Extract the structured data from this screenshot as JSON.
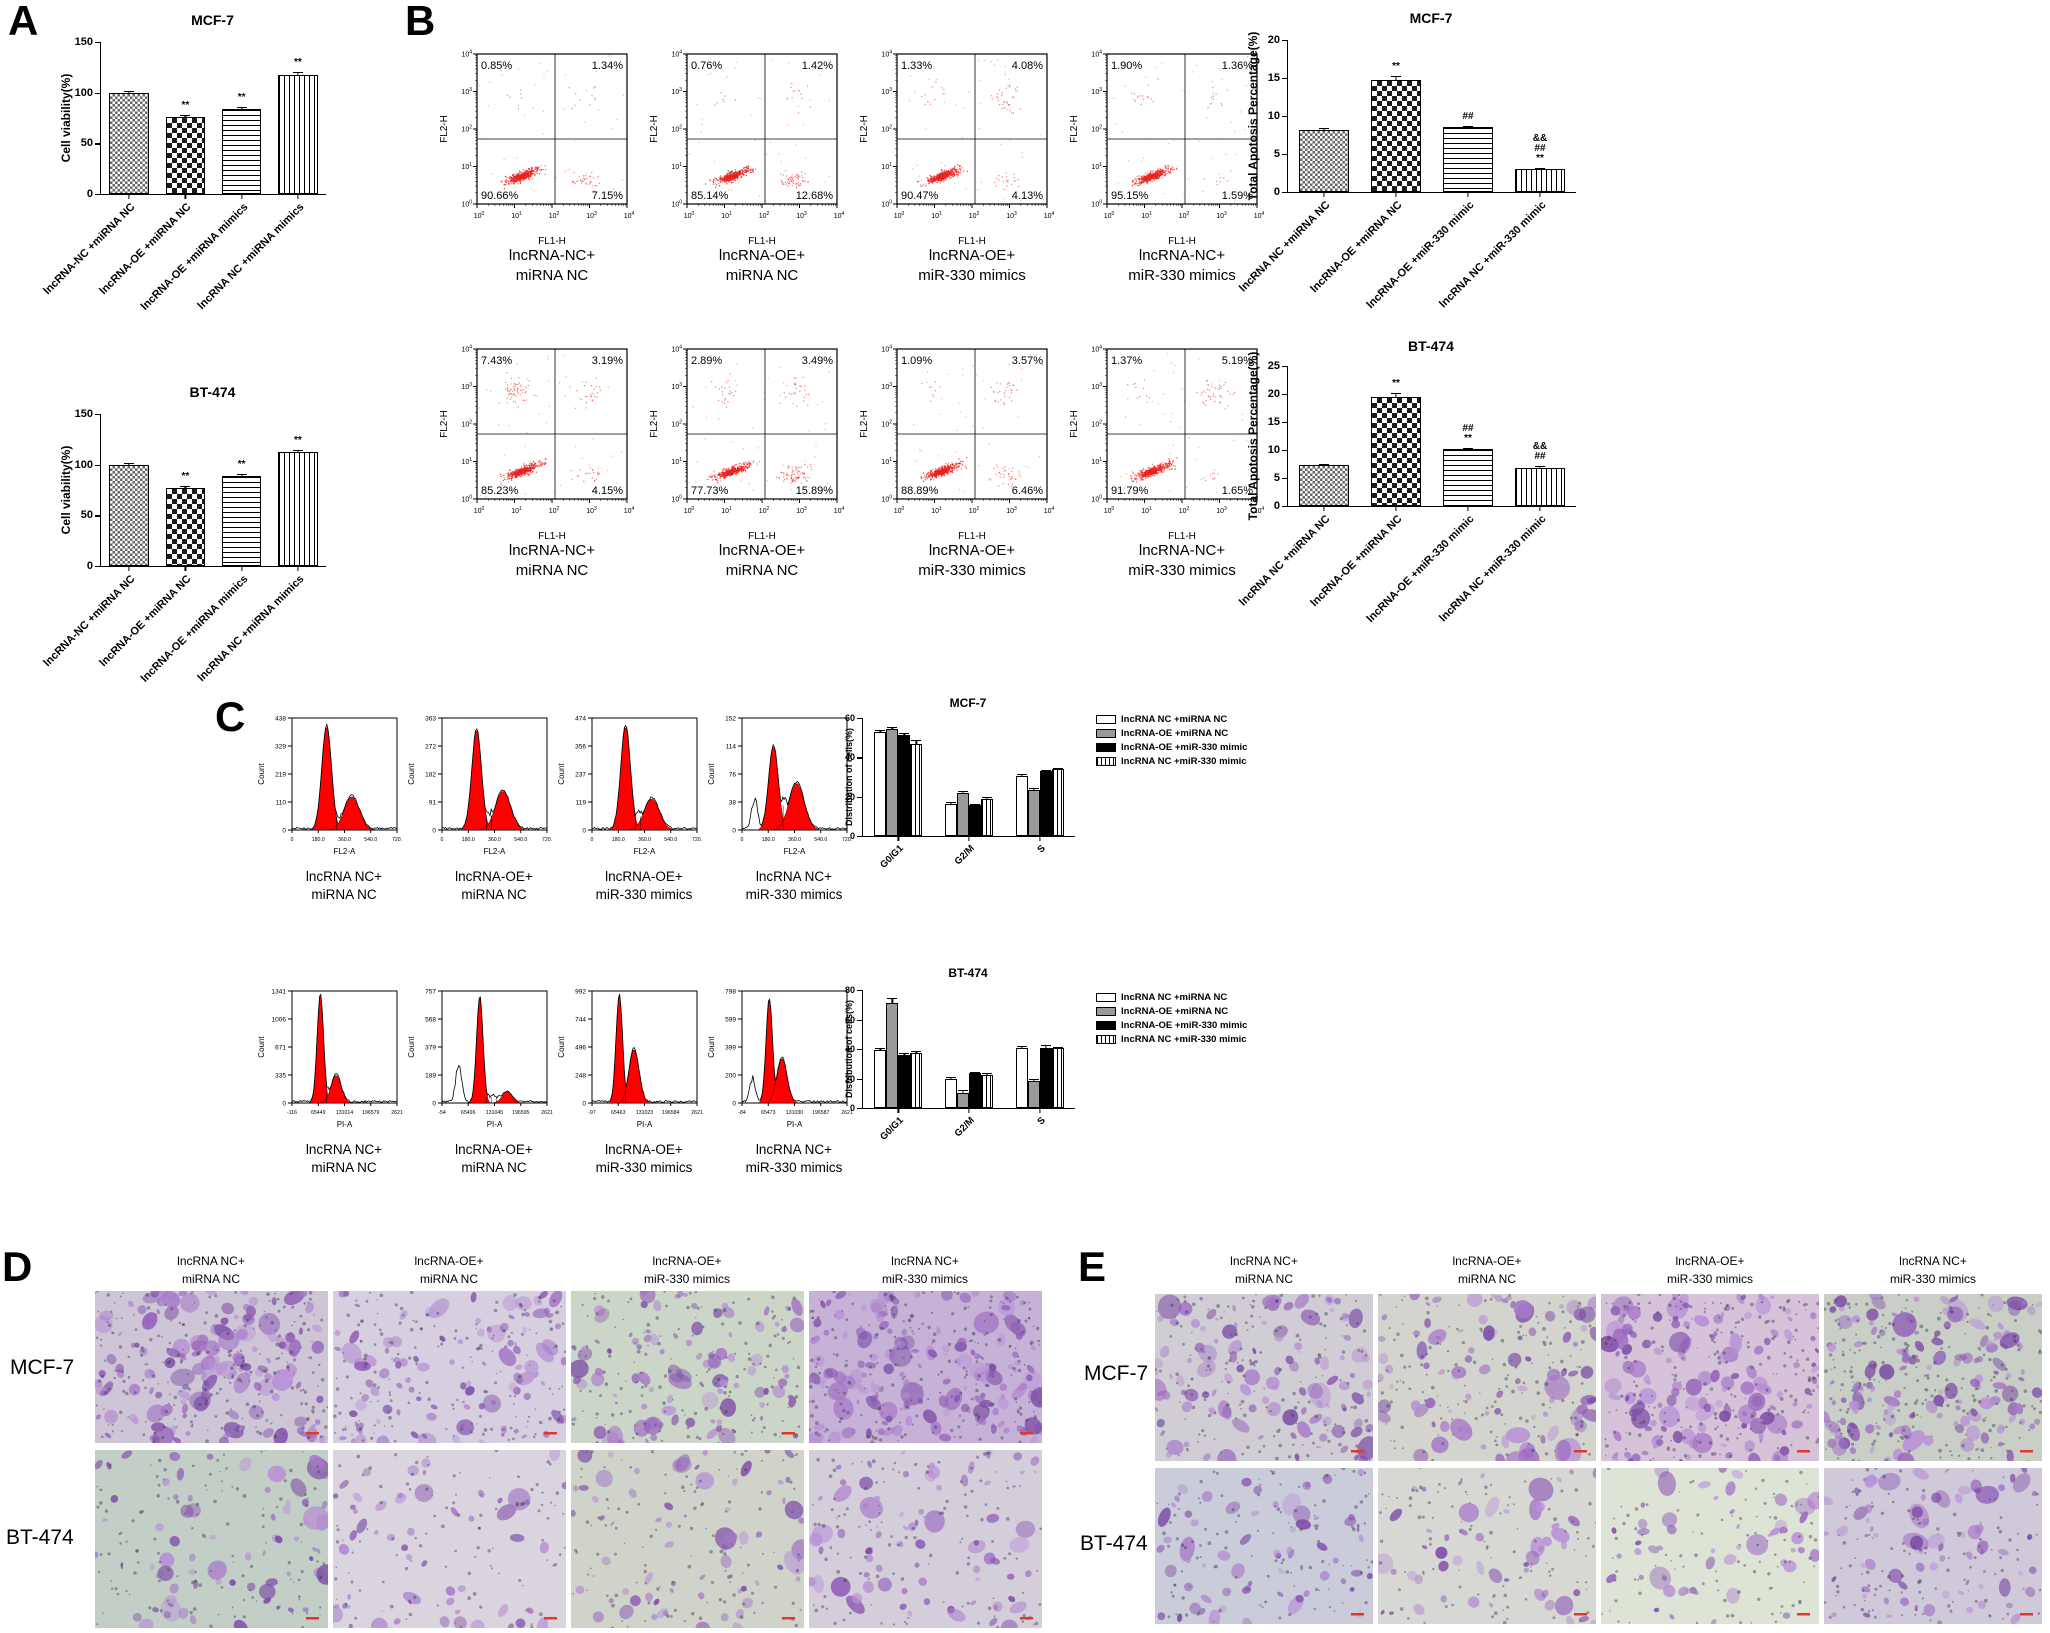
{
  "colors": {
    "flow_dot_red": "#e8241f",
    "hist_peak_red": "#ff0000",
    "stain_purple": "#9a63c0",
    "stain_purple_dark": "#6d3f96",
    "axis_black": "#000000",
    "legend_gray": "#999999"
  },
  "panels": {
    "a": {
      "letter": "A"
    },
    "b": {
      "letter": "B",
      "flow_axis": {
        "x": "FL1-H",
        "y": "FL2-H",
        "tick_base": "10",
        "tick_exps": [
          0,
          1,
          2,
          3,
          4
        ]
      },
      "rows": [
        {
          "plots": [
            {
              "label1": "lncRNA-NC+",
              "label2": "miRNA NC",
              "ul": "0.85%",
              "ur": "1.34%",
              "ll": "90.66%",
              "lr": "7.15%"
            },
            {
              "label1": "lncRNA-OE+",
              "label2": "miRNA NC",
              "ul": "0.76%",
              "ur": "1.42%",
              "ll": "85.14%",
              "lr": "12.68%"
            },
            {
              "label1": "lncRNA-OE+",
              "label2": "miR-330 mimics",
              "ul": "1.33%",
              "ur": "4.08%",
              "ll": "90.47%",
              "lr": "4.13%"
            },
            {
              "label1": "lncRNA-NC+",
              "label2": "miR-330 mimics",
              "ul": "1.90%",
              "ur": "1.36%",
              "ll": "95.15%",
              "lr": "1.59%"
            }
          ]
        },
        {
          "plots": [
            {
              "label1": "lncRNA-NC+",
              "label2": "miRNA NC",
              "ul": "7.43%",
              "ur": "3.19%",
              "ll": "85.23%",
              "lr": "4.15%"
            },
            {
              "label1": "lncRNA-OE+",
              "label2": "miRNA NC",
              "ul": "2.89%",
              "ur": "3.49%",
              "ll": "77.73%",
              "lr": "15.89%"
            },
            {
              "label1": "lncRNA-OE+",
              "label2": "miR-330 mimics",
              "ul": "1.09%",
              "ur": "3.57%",
              "ll": "88.89%",
              "lr": "6.46%"
            },
            {
              "label1": "lncRNA-NC+",
              "label2": "miR-330 mimics",
              "ul": "1.37%",
              "ur": "5.19%",
              "ll": "91.79%",
              "lr": "1.65%"
            }
          ]
        }
      ]
    },
    "c": {
      "letter": "C",
      "rows": [
        {
          "xlabel": "FL2-A",
          "ylabel": "Count",
          "plots": [
            {
              "label1": "lncRNA NC+",
              "label2": "miRNA NC",
              "yticks": [
                "438",
                "329",
                "219",
                "110",
                "0"
              ],
              "xticks": [
                "0",
                "180.0",
                "360.0",
                "540.0",
                "720."
              ],
              "shape": {
                "p1": 0.33,
                "h1": 0.93,
                "p2": 0.57,
                "h2": 0.3,
                "plat": 0.12,
                "narrow": false
              }
            },
            {
              "label1": "lncRNA-OE+",
              "label2": "miRNA NC",
              "yticks": [
                "363",
                "272",
                "182",
                "91",
                "0"
              ],
              "xticks": [
                "0",
                "180.0",
                "360.0",
                "540.0",
                "720."
              ],
              "shape": {
                "p1": 0.33,
                "h1": 0.9,
                "p2": 0.58,
                "h2": 0.35,
                "plat": 0.13,
                "narrow": false
              }
            },
            {
              "label1": "lncRNA-OE+",
              "label2": "miR-330 mimics",
              "yticks": [
                "474",
                "356",
                "237",
                "119",
                "0"
              ],
              "xticks": [
                "0",
                "180.0",
                "360.0",
                "540.0",
                "720."
              ],
              "shape": {
                "p1": 0.32,
                "h1": 0.93,
                "p2": 0.57,
                "h2": 0.28,
                "plat": 0.12,
                "narrow": false
              }
            },
            {
              "label1": "lncRNA NC+",
              "label2": "miR-330 mimics",
              "yticks": [
                "152",
                "114",
                "76",
                "38",
                "0"
              ],
              "xticks": [
                "0",
                "180.0",
                "360.0",
                "540.0",
                "720."
              ],
              "shape": {
                "p1": 0.3,
                "h1": 0.75,
                "p2": 0.52,
                "h2": 0.42,
                "plat": 0.22,
                "narrow": false,
                "debris": {
                  "x": 0.12,
                  "h": 0.28
                }
              }
            }
          ]
        },
        {
          "xlabel": "PI-A",
          "ylabel": "Count",
          "plots": [
            {
              "label1": "lncRNA NC+",
              "label2": "miRNA NC",
              "yticks": [
                "1341",
                "1006",
                "671",
                "335",
                "0"
              ],
              "xticks": [
                "-116",
                "65449",
                "131014",
                "196579",
                "2621"
              ],
              "shape": {
                "p1": 0.27,
                "h1": 0.97,
                "p2": 0.42,
                "h2": 0.25,
                "plat": 0.1,
                "narrow": true
              }
            },
            {
              "label1": "lncRNA-OE+",
              "label2": "miRNA NC",
              "yticks": [
                "757",
                "568",
                "379",
                "189",
                "0"
              ],
              "xticks": [
                "-54",
                "65496",
                "131045",
                "196595",
                "2621"
              ],
              "shape": {
                "p1": 0.36,
                "h1": 0.95,
                "p2": 0.62,
                "h2": 0.1,
                "plat": 0.05,
                "narrow": true,
                "debris": {
                  "x": 0.16,
                  "h": 0.33
                }
              }
            },
            {
              "label1": "lncRNA-OE+",
              "label2": "miR-330 mimics",
              "yticks": [
                "992",
                "744",
                "496",
                "248",
                "0"
              ],
              "xticks": [
                "-97",
                "65463",
                "131023",
                "196584",
                "2621"
              ],
              "shape": {
                "p1": 0.26,
                "h1": 0.97,
                "p2": 0.4,
                "h2": 0.48,
                "plat": 0.12,
                "narrow": true
              }
            },
            {
              "label1": "lncRNA NC+",
              "label2": "miR-330 mimics",
              "yticks": [
                "798",
                "599",
                "399",
                "200",
                "0"
              ],
              "xticks": [
                "-84",
                "65473",
                "131030",
                "196587",
                "2621"
              ],
              "shape": {
                "p1": 0.26,
                "h1": 0.93,
                "p2": 0.38,
                "h2": 0.4,
                "plat": 0.15,
                "narrow": true,
                "debris": {
                  "x": 0.1,
                  "h": 0.2
                }
              }
            }
          ]
        }
      ]
    },
    "d": {
      "letter": "D",
      "col_headers": [
        {
          "line1": "lncRNA NC+",
          "line2": "miRNA NC"
        },
        {
          "line1": "lncRNA-OE+",
          "line2": "miRNA NC"
        },
        {
          "line1": "lncRNA-OE+",
          "line2": "miR-330 mimics"
        },
        {
          "line1": "lncRNA NC+",
          "line2": "miR-330 mimics"
        }
      ],
      "rows": [
        {
          "label": "MCF-7",
          "images": [
            {
              "bg": "#cec5d6",
              "density": 0.95
            },
            {
              "bg": "#d6cfdf",
              "density": 0.55
            },
            {
              "bg": "#ccd6c8",
              "density": 0.5
            },
            {
              "bg": "#c6b2d6",
              "density": 1.0
            }
          ]
        },
        {
          "label": "BT-474",
          "images": [
            {
              "bg": "#c2cec6",
              "density": 0.28
            },
            {
              "bg": "#d9d4de",
              "density": 0.14
            },
            {
              "bg": "#cfd3c9",
              "density": 0.25
            },
            {
              "bg": "#d4cdda",
              "density": 0.3
            }
          ]
        }
      ]
    },
    "e": {
      "letter": "E",
      "col_headers": [
        {
          "line1": "lncRNA NC+",
          "line2": "miRNA NC"
        },
        {
          "line1": "lncRNA-OE+",
          "line2": "miRNA NC"
        },
        {
          "line1": "lncRNA-OE+",
          "line2": "miR-330 mimics"
        },
        {
          "line1": "lncRNA NC+",
          "line2": "miR-330 mimics"
        }
      ],
      "rows": [
        {
          "label": "MCF-7",
          "images": [
            {
              "bg": "#d0cdd4",
              "density": 0.6
            },
            {
              "bg": "#d3d4ce",
              "density": 0.45
            },
            {
              "bg": "#d6c3da",
              "density": 0.85
            },
            {
              "bg": "#c9cfc7",
              "density": 0.9
            }
          ]
        },
        {
          "label": "BT-474",
          "images": [
            {
              "bg": "#cbccd9",
              "density": 0.22
            },
            {
              "bg": "#d7d7d3",
              "density": 0.12
            },
            {
              "bg": "#dee4d5",
              "density": 0.12
            },
            {
              "bg": "#d0c9d9",
              "density": 0.28
            }
          ]
        }
      ]
    }
  },
  "chart_data": [
    {
      "id": "viab-mcf7",
      "type": "bar",
      "title": "MCF-7",
      "ylabel": "Cell viability(%)",
      "ylim": [
        0,
        150
      ],
      "yticks": [
        0,
        50,
        100,
        150
      ],
      "categories": [
        "lncRNA-NC +miRNA NC",
        "lncRNA-OE +miRNA NC",
        "lncRNA-OE +miRNA mimics",
        "lncRNA NC +miRNA mimics"
      ],
      "values": [
        100,
        76,
        84,
        117
      ],
      "errors": [
        2,
        2,
        2,
        3
      ],
      "sig": [
        "",
        "**",
        "**",
        "**"
      ],
      "patterns": [
        "checker-sm",
        "checker-lg",
        "hlines",
        "vlines"
      ]
    },
    {
      "id": "viab-bt474",
      "type": "bar",
      "title": "BT-474",
      "ylabel": "Cell viability(%)",
      "ylim": [
        0,
        150
      ],
      "yticks": [
        0,
        50,
        100,
        150
      ],
      "categories": [
        "lncRNA-NC +miRNA NC",
        "lncRNA-OE +miRNA NC",
        "lncRNA-OE +miRNA mimics",
        "lncRNA NC +miRNA mimics"
      ],
      "values": [
        100,
        77,
        89,
        113
      ],
      "errors": [
        1.5,
        2,
        1.5,
        1.5
      ],
      "sig": [
        "",
        "**",
        "**",
        "**"
      ],
      "patterns": [
        "checker-sm",
        "checker-lg",
        "hlines",
        "vlines"
      ]
    },
    {
      "id": "apo-mcf7",
      "type": "bar",
      "title": "MCF-7",
      "ylabel": "Total Apotosis Percentage(%)",
      "ylim": [
        0,
        20
      ],
      "yticks": [
        0,
        5,
        10,
        15,
        20
      ],
      "categories": [
        "lncRNA NC +miRNA NC",
        "lncRNA-OE +miRNA NC",
        "lncRNA-OE +miR-330 mimic",
        "lncRNA NC +miR-330 mimic"
      ],
      "values": [
        8.2,
        14.8,
        8.5,
        3.0
      ],
      "errors": [
        0.2,
        0.5,
        0.2,
        0.15
      ],
      "sig": [
        "",
        "**",
        "##",
        "&&\n##\n**"
      ],
      "patterns": [
        "checker-sm",
        "checker-lg",
        "hlines",
        "vlines"
      ]
    },
    {
      "id": "apo-bt474",
      "type": "bar",
      "title": "BT-474",
      "ylabel": "Total Apotosis Percentage(%)",
      "ylim": [
        0,
        25
      ],
      "yticks": [
        0,
        5,
        10,
        15,
        20,
        25
      ],
      "categories": [
        "lncRNA NC +miRNA NC",
        "lncRNA-OE +miRNA NC",
        "lncRNA-OE +miR-330 mimic",
        "lncRNA NC +miR-330 mimic"
      ],
      "values": [
        7.4,
        19.5,
        10.1,
        6.7
      ],
      "errors": [
        0.1,
        0.6,
        0.3,
        0.4
      ],
      "sig": [
        "",
        "**",
        "##\n**",
        "&&\n##"
      ],
      "patterns": [
        "checker-sm",
        "checker-lg",
        "hlines",
        "vlines"
      ]
    },
    {
      "id": "dist-mcf7",
      "type": "bar-grouped",
      "title": "MCF-7",
      "ylabel": "Distribution of cells(%)",
      "ylim": [
        0,
        60
      ],
      "yticks": [
        0,
        20,
        40,
        60
      ],
      "categories": [
        "G0/G1",
        "G2/M",
        "S"
      ],
      "series": [
        {
          "name": "lncRNA NC +miRNA NC",
          "fill": "white",
          "values": [
            53,
            16.5,
            30.5
          ],
          "errors": [
            1,
            0.8,
            0.8
          ]
        },
        {
          "name": "lncRNA-OE +miRNA NC",
          "fill": "gray",
          "values": [
            54.5,
            22,
            23.5
          ],
          "errors": [
            0.8,
            0.8,
            0.8
          ]
        },
        {
          "name": "lncRNA-OE +miR-330 mimic",
          "fill": "black",
          "values": [
            51.5,
            16,
            33
          ],
          "errors": [
            0.8,
            0.5,
            0.8
          ]
        },
        {
          "name": "lncRNA NC +miR-330 mimic",
          "fill": "vlines",
          "values": [
            47,
            19,
            34
          ],
          "errors": [
            2,
            0.8,
            0.8
          ]
        }
      ]
    },
    {
      "id": "dist-bt474",
      "type": "bar-grouped",
      "title": "BT-474",
      "ylabel": "Distribution of cells(%)",
      "ylim": [
        0,
        80
      ],
      "yticks": [
        0,
        20,
        40,
        60,
        80
      ],
      "categories": [
        "G0/G1",
        "G2/M",
        "S"
      ],
      "series": [
        {
          "name": "lncRNA NC +miRNA NC",
          "fill": "white",
          "values": [
            39,
            20,
            41
          ],
          "errors": [
            2,
            1,
            1
          ]
        },
        {
          "name": "lncRNA-OE +miRNA NC",
          "fill": "gray",
          "values": [
            71.5,
            10.5,
            18.5
          ],
          "errors": [
            3,
            2,
            1.5
          ]
        },
        {
          "name": "lncRNA-OE +miR-330 mimic",
          "fill": "black",
          "values": [
            36,
            23.5,
            41
          ],
          "errors": [
            1,
            1,
            1.5
          ]
        },
        {
          "name": "lncRNA NC +miR-330 mimic",
          "fill": "vlines",
          "values": [
            37,
            22.5,
            40.5
          ],
          "errors": [
            1.5,
            1,
            1
          ]
        }
      ]
    }
  ]
}
